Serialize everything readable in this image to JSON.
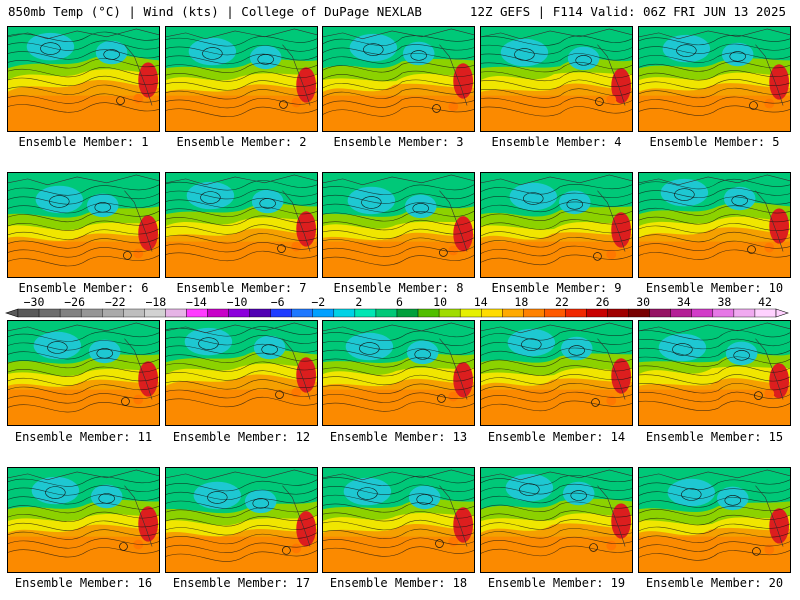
{
  "header": {
    "left": "850mb Temp (°C) | Wind (kts) | College of DuPage NEXLAB",
    "right": "12Z GEFS | F114 Valid: 06Z FRI JUN 13 2025"
  },
  "members": [
    "Ensemble Member: 1",
    "Ensemble Member: 2",
    "Ensemble Member: 3",
    "Ensemble Member: 4",
    "Ensemble Member: 5",
    "Ensemble Member: 6",
    "Ensemble Member: 7",
    "Ensemble Member: 8",
    "Ensemble Member: 9",
    "Ensemble Member: 10",
    "Ensemble Member: 11",
    "Ensemble Member: 12",
    "Ensemble Member: 13",
    "Ensemble Member: 14",
    "Ensemble Member: 15",
    "Ensemble Member: 16",
    "Ensemble Member: 17",
    "Ensemble Member: 18",
    "Ensemble Member: 19",
    "Ensemble Member: 20"
  ],
  "colorbar": {
    "ticks": [
      "−30",
      "−26",
      "−22",
      "−18",
      "−14",
      "−10",
      "−6",
      "−2",
      "2",
      "6",
      "10",
      "14",
      "18",
      "22",
      "26",
      "30",
      "34",
      "38",
      "42"
    ],
    "colors": [
      "#5a5a5a",
      "#6e6e6e",
      "#828282",
      "#969696",
      "#aaaaaa",
      "#bebebe",
      "#d2d2d2",
      "#e6b4e6",
      "#ff3cff",
      "#c800c8",
      "#8c00dc",
      "#5000b4",
      "#1e3cff",
      "#1e78ff",
      "#00a0ff",
      "#00d2e6",
      "#00e6b4",
      "#00c878",
      "#00a03c",
      "#50be00",
      "#a0dc00",
      "#e6f000",
      "#ffdc00",
      "#ffaa00",
      "#ff8200",
      "#ff5a00",
      "#f02800",
      "#c80000",
      "#a00000",
      "#780000",
      "#961464",
      "#b41e96",
      "#d23cc8",
      "#e678e6",
      "#f0aaf0",
      "#ffd2ff"
    ]
  },
  "map_colors": {
    "cold": "#1ec8d2",
    "cool": "#00c878",
    "mild": "#8cd200",
    "warm": "#f0e600",
    "hot": "#f5a000",
    "hotter": "#ff7800",
    "extreme": "#dc1e1e"
  }
}
